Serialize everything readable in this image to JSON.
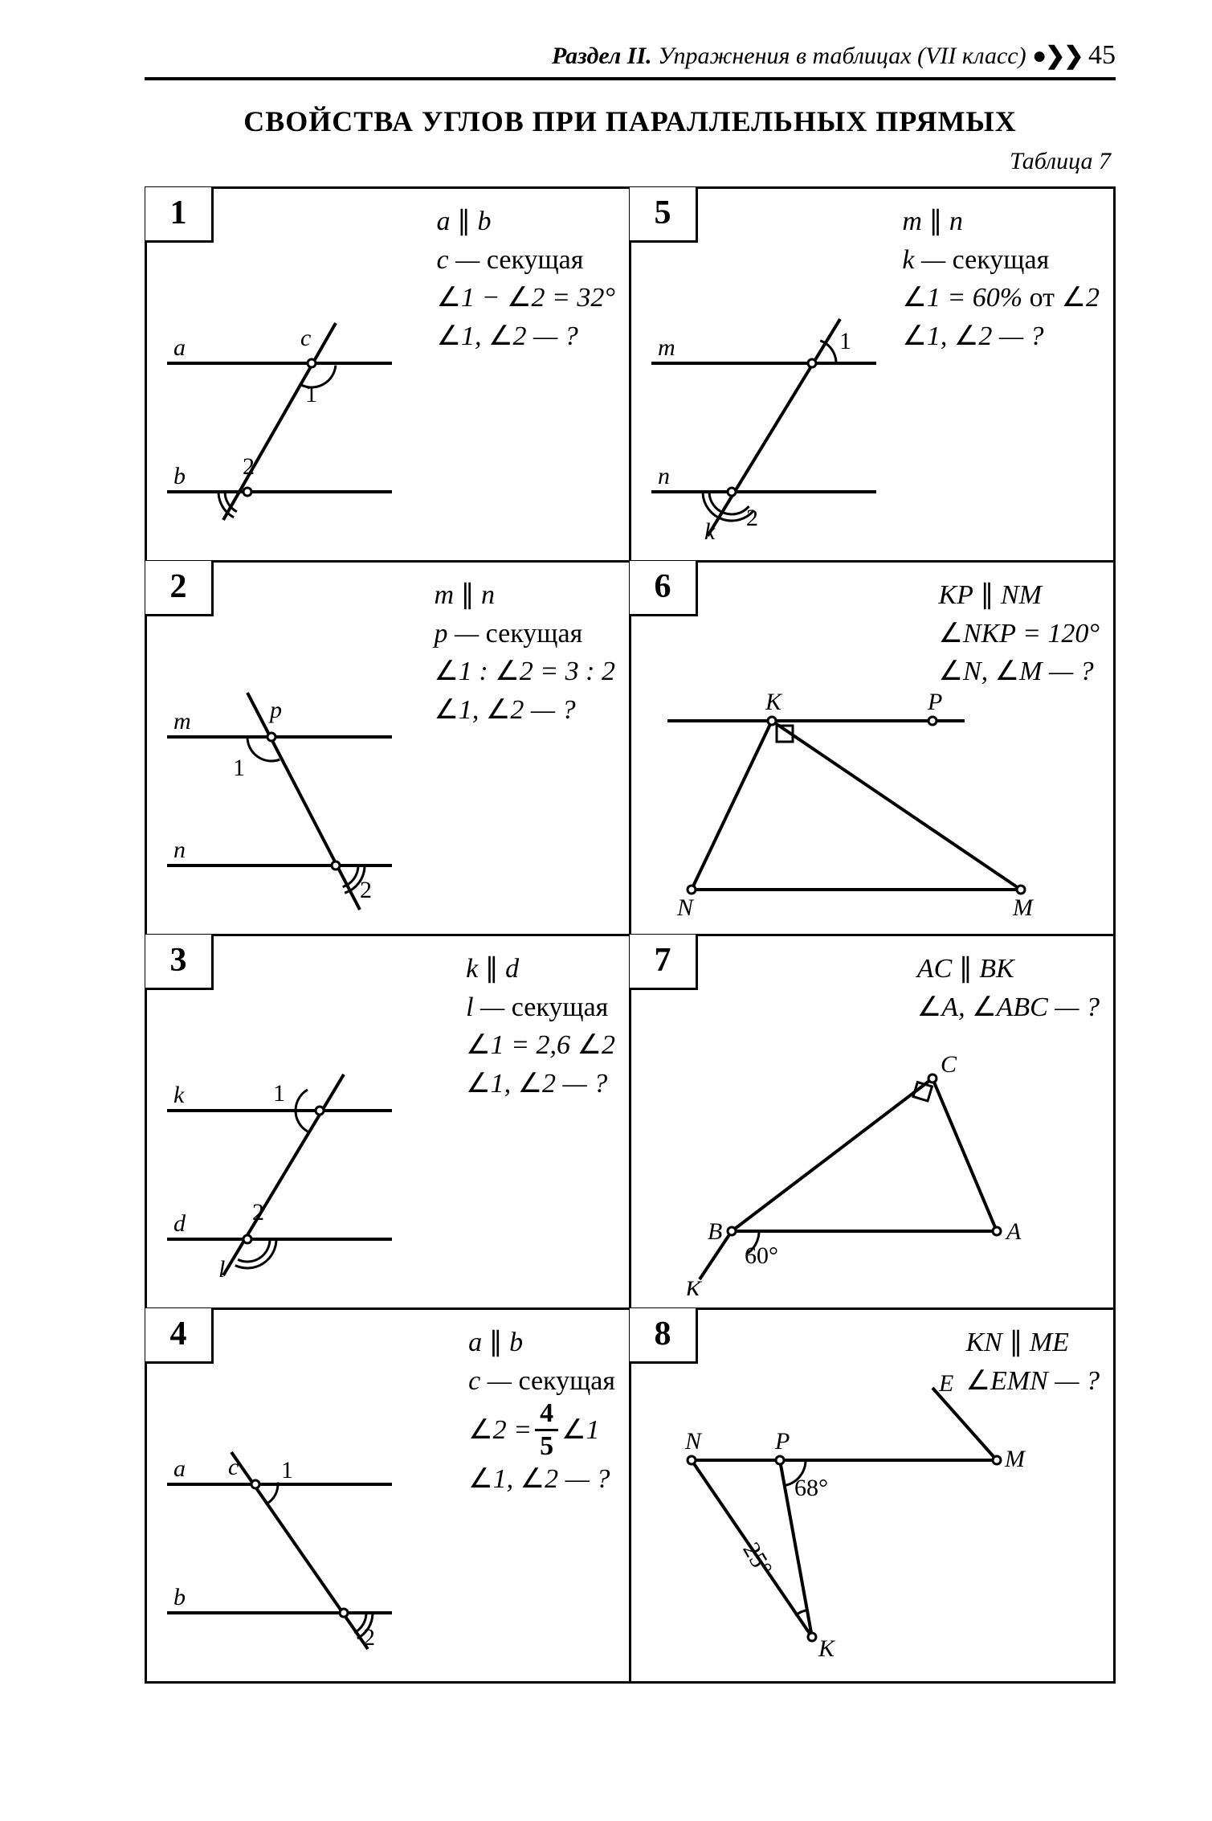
{
  "header": {
    "section": "Раздел II.",
    "rest": "Упражнения в таблицах (VII класс)",
    "bullets": "●❯❯",
    "page": "45"
  },
  "title": "СВОЙСТВА УГЛОВ ПРИ ПАРАЛЛЕЛЬНЫХ ПРЯМЫХ",
  "table_label": "Таблица 7",
  "style": {
    "stroke": "#000000",
    "stroke_width": 3,
    "stroke_bold": 4,
    "point_r": 5,
    "point_fill": "#ffffff",
    "diagram_font": "italic 30px Times New Roman",
    "number_font": "30px Times New Roman"
  },
  "cells": [
    {
      "n": "1",
      "given_html": "<span><i>a</i><span class='par'></span><i>b</i></span><br><i>c</i> — <span class='up'>секущая</span><br><span class='ang'></span>1 − <span class='ang'></span>2 = 32°<br><span class='ang'></span>1, <span class='ang'></span>2 — ?",
      "dia": {
        "type": "parallel-transversal",
        "top": "a",
        "bot": "b",
        "trans": "c",
        "ang1_at": "top-below-right",
        "ang2_at": "bot-above-left"
      }
    },
    {
      "n": "5",
      "given_html": "<span><i>m</i><span class='par'></span><i>n</i></span><br><i>k</i> — <span class='up'>секущая</span><br><span class='ang'></span>1 = 60% <span class='up'>от</span> <span class='ang'></span>2<br><span class='ang'></span>1, <span class='ang'></span>2 — ?",
      "dia": {
        "type": "parallel-transversal-ext",
        "top": "m",
        "bot": "n",
        "trans": "k",
        "ang1_at": "top-above-right",
        "ang2_at": "bot-below-right"
      }
    },
    {
      "n": "2",
      "given_html": "<span><i>m</i><span class='par'></span><i>n</i></span><br><i>p</i> — <span class='up'>секущая</span><br><span class='ang'></span>1 : <span class='ang'></span>2 = 3 : 2<br><span class='ang'></span>1, <span class='ang'></span>2 — ?",
      "dia": {
        "type": "parallel-transversal-steep",
        "top": "m",
        "bot": "n",
        "trans": "p"
      }
    },
    {
      "n": "6",
      "given_html": "<span><i>KP</i><span class='par'></span><i>NM</i></span><br><span class='ang'></span><i>NKP</i> = 120°<br><span class='ang'></span><i>N</i>, <span class='ang'></span><i>M</i> — ?",
      "dia": {
        "type": "triangle-kp-nm"
      }
    },
    {
      "n": "3",
      "given_html": "<span><i>k</i><span class='par'></span><i>d</i></span><br><i>l</i> — <span class='up'>секущая</span><br><span class='ang'></span>1 = 2,6 <span class='ang'></span>2<br><span class='ang'></span>1, <span class='ang'></span>2 — ?",
      "dia": {
        "type": "parallel-transversal-top1bot2",
        "top": "k",
        "bot": "d",
        "trans": "l"
      }
    },
    {
      "n": "7",
      "given_html": "<span><i>AC</i><span class='par'></span><i>BK</i></span><br><span class='ang'></span><i>A</i>, <span class='ang'></span><i>ABC</i> — ?",
      "dia": {
        "type": "triangle-ac-bk"
      }
    },
    {
      "n": "4",
      "given_html": "<span><i>a</i><span class='par'></span><i>b</i></span><br><i>c</i> — <span class='up'>секущая</span><br><span style='display:inline-block;vertical-align:middle'><span class='ang'></span>2 = </span><span class='frac'><span class='n'>4</span><span class='d'>5</span></span><span style='display:inline-block;vertical-align:middle'> <span class='ang'></span>1</span><br><span class='ang'></span>1, <span class='ang'></span>2 — ?",
      "dia": {
        "type": "parallel-transversal-reverse",
        "top": "a",
        "bot": "b",
        "trans": "c"
      }
    },
    {
      "n": "8",
      "given_html": "<span><i>KN</i><span class='par'></span><i>ME</i></span><br><span class='ang'></span><i>EMN</i> — ?",
      "dia": {
        "type": "kn-me"
      }
    }
  ]
}
